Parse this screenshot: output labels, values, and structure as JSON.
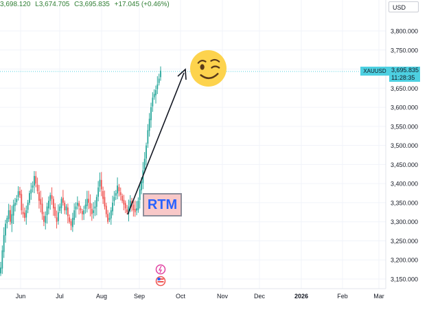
{
  "header": {
    "ohlc_partial": "3,698.120",
    "low": "L3,674.705",
    "close": "C3,695.835",
    "change": "+17.045 (+0.46%)"
  },
  "currency": "USD",
  "symbol": "XAUUSD",
  "last_price": "3,695.835",
  "countdown": "11:28:35",
  "annotation": {
    "text": "RTM",
    "icon": "winking-face-emoji"
  },
  "colors": {
    "up": "#26a69a",
    "down": "#ef5350",
    "accent": "#4dd0e1",
    "annotation_text": "#2962ff"
  },
  "chart_data": {
    "type": "candlestick",
    "x_ticks": [
      "Jun",
      "Jul",
      "Aug",
      "Sep",
      "Oct",
      "Nov",
      "Dec",
      "2026",
      "Feb",
      "Mar"
    ],
    "y_ticks": [
      "3,150.000",
      "3,200.000",
      "3,250.000",
      "3,300.000",
      "3,350.000",
      "3,400.000",
      "3,450.000",
      "3,500.000",
      "3,550.000",
      "3,600.000",
      "3,650.000",
      "3,700.000",
      "3,750.000",
      "3,800.000"
    ],
    "ylim": [
      3130,
      3830
    ],
    "last_close": 3695.835,
    "closes": [
      3180,
      3225,
      3265,
      3295,
      3310,
      3330,
      3300,
      3320,
      3345,
      3350,
      3360,
      3380,
      3370,
      3330,
      3320,
      3310,
      3330,
      3350,
      3375,
      3385,
      3395,
      3420,
      3400,
      3380,
      3355,
      3345,
      3320,
      3300,
      3315,
      3340,
      3355,
      3370,
      3360,
      3335,
      3315,
      3300,
      3325,
      3340,
      3360,
      3350,
      3330,
      3340,
      3315,
      3300,
      3290,
      3310,
      3330,
      3340,
      3350,
      3340,
      3330,
      3320,
      3330,
      3345,
      3360,
      3350,
      3335,
      3320,
      3330,
      3340,
      3365,
      3390,
      3410,
      3385,
      3360,
      3340,
      3320,
      3300,
      3310,
      3330,
      3350,
      3365,
      3375,
      3395,
      3380,
      3370,
      3355,
      3345,
      3335,
      3325,
      3340,
      3355,
      3345,
      3330,
      3325,
      3335,
      3355,
      3385,
      3405,
      3435,
      3465,
      3500,
      3540,
      3570,
      3600,
      3625,
      3635,
      3645,
      3660,
      3675,
      3695.835
    ]
  }
}
